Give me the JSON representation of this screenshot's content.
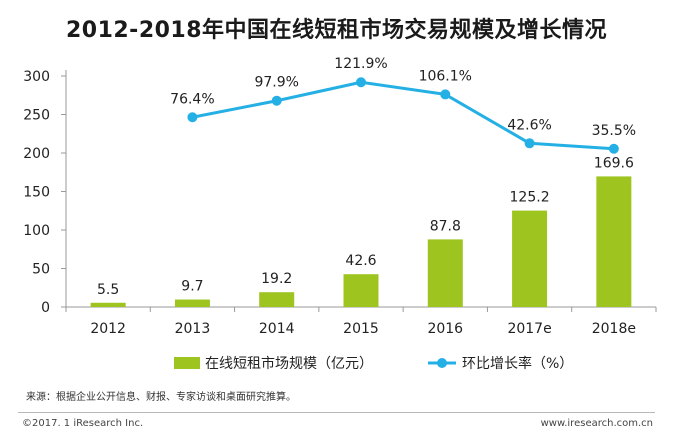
{
  "chart_data": {
    "type": "bar",
    "title": "2012-2018年中国在线短租市场交易规模及增长情况",
    "categories": [
      "2012",
      "2013",
      "2014",
      "2015",
      "2016",
      "2017e",
      "2018e"
    ],
    "series": [
      {
        "name": "在线短租市场规模（亿元）",
        "type": "bar",
        "values": [
          5.5,
          9.7,
          19.2,
          42.6,
          87.8,
          125.2,
          169.6
        ],
        "labels": [
          "5.5",
          "9.7",
          "19.2",
          "42.6",
          "87.8",
          "125.2",
          "169.6"
        ],
        "color": "#9dc41f"
      },
      {
        "name": "环比增长率（%）",
        "type": "line",
        "values": [
          null,
          76.4,
          97.9,
          121.9,
          106.1,
          42.6,
          35.5
        ],
        "labels": [
          null,
          "76.4%",
          "97.9%",
          "121.9%",
          "106.1%",
          "42.6%",
          "35.5%"
        ],
        "color": "#25b0e5"
      }
    ],
    "yticks": [
      "0",
      "50",
      "100",
      "150",
      "200",
      "250",
      "300"
    ],
    "ylim": [
      0,
      300
    ],
    "grid": false,
    "legend": "bottom"
  },
  "source": "来源：根据企业公开信息、财报、专家访谈和桌面研究推算。",
  "copyright": "©2017. 1 iResearch Inc.",
  "website": "www.iresearch.com.cn"
}
